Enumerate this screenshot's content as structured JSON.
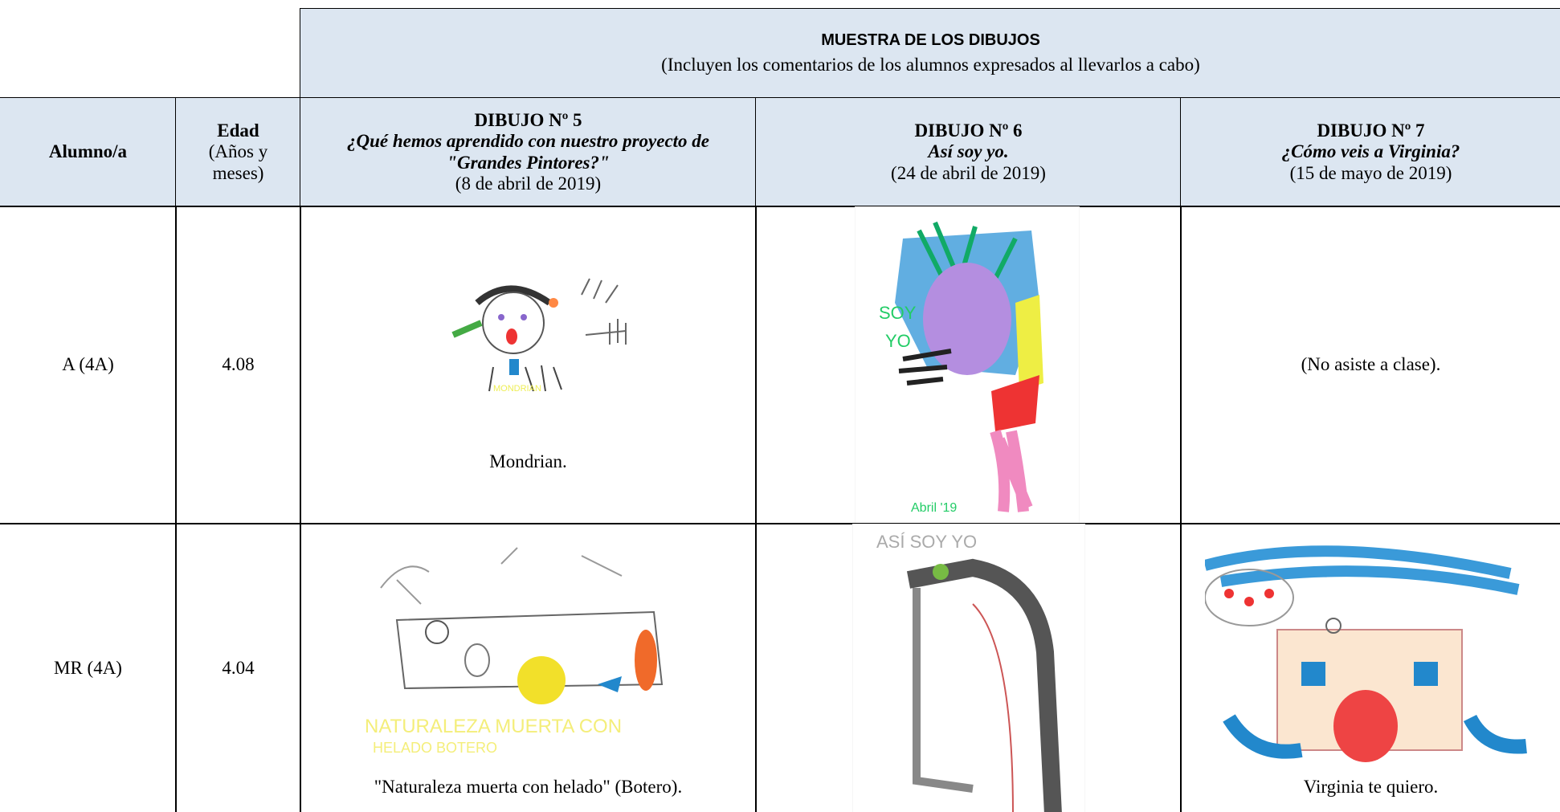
{
  "header": {
    "title": "MUESTRA DE LOS DIBUJOS",
    "subtitle": "(Incluyen los comentarios de los alumnos expresados al llevarlos a cabo)"
  },
  "table": {
    "columns": [
      {
        "title": "Alumno/a"
      },
      {
        "title": "Edad",
        "subtitle": "(Años y meses)"
      },
      {
        "title": "DIBUJO Nº 5",
        "subtitle": "¿Qué hemos aprendido con nuestro proyecto de \"Grandes Pintores?\"",
        "date": "(8 de abril de 2019)"
      },
      {
        "title": "DIBUJO Nº 6",
        "subtitle": "Así soy yo.",
        "date": "(24 de abril de 2019)"
      },
      {
        "title": "DIBUJO Nº 7",
        "subtitle": "¿Cómo veis a Virginia?",
        "date": "(15 de mayo de 2019)"
      }
    ],
    "rows": [
      {
        "student": "A (4A)",
        "age": "4.08",
        "drawing_5": "Mondrian.",
        "drawing_7": "(No asiste a clase)."
      },
      {
        "student": "MR (4A)",
        "age": "4.04",
        "drawing_5": "\"Naturaleza muerta con helado\" (Botero).",
        "drawing_7": "Virginia te quiero."
      }
    ]
  }
}
